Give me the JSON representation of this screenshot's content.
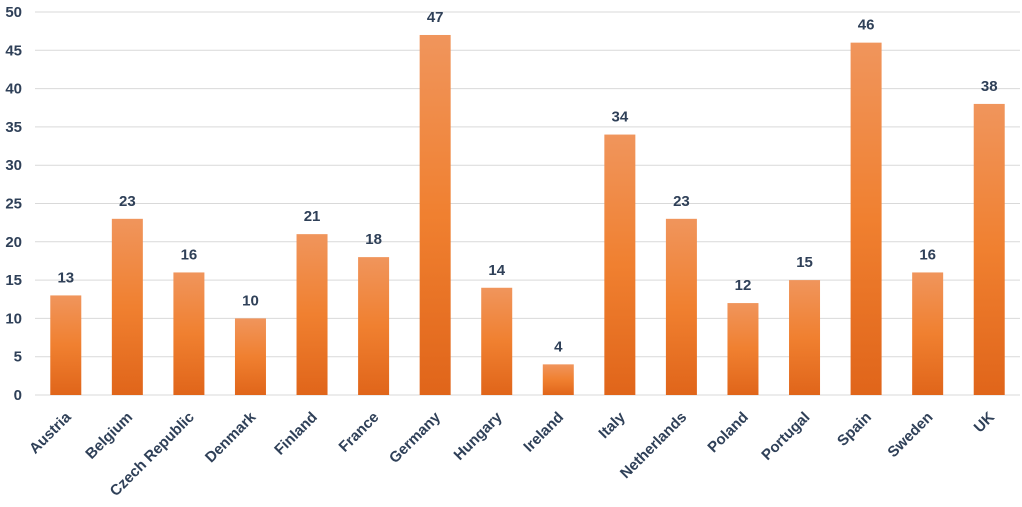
{
  "chart_data": {
    "type": "bar",
    "title": "",
    "xlabel": "",
    "ylabel": "",
    "categories": [
      "Austria",
      "Belgium",
      "Czech Republic",
      "Denmark",
      "Finland",
      "France",
      "Germany",
      "Hungary",
      "Ireland",
      "Italy",
      "Netherlands",
      "Poland",
      "Portugal",
      "Spain",
      "Sweden",
      "UK"
    ],
    "values": [
      13,
      23,
      16,
      10,
      21,
      18,
      47,
      14,
      4,
      34,
      23,
      12,
      15,
      46,
      16,
      38
    ],
    "ylim": [
      0,
      50
    ],
    "yticks": [
      0,
      5,
      10,
      15,
      20,
      25,
      30,
      35,
      40,
      45,
      50
    ],
    "grid": true,
    "legend": "none",
    "colors": {
      "bar_top": "#f0955c",
      "bar_mid": "#f08030",
      "bar_bottom": "#e0651a",
      "text": "#2f4058",
      "grid": "#d9d9d9"
    }
  }
}
